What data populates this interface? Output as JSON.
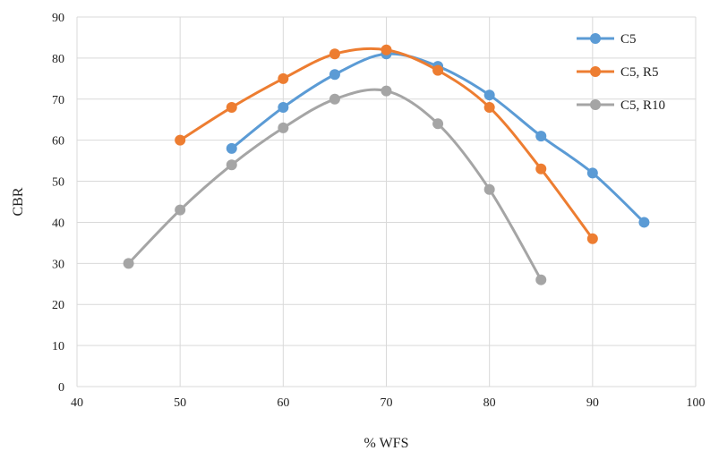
{
  "chart_data": {
    "type": "line",
    "title": "",
    "xlabel": "% WFS",
    "ylabel": "CBR",
    "xlim": [
      40,
      100
    ],
    "ylim": [
      0,
      90
    ],
    "x_ticks": [
      "40",
      "50",
      "60",
      "70",
      "80",
      "90",
      "100"
    ],
    "y_ticks": [
      "0",
      "10",
      "20",
      "30",
      "40",
      "50",
      "60",
      "70",
      "80",
      "90"
    ],
    "grid": "vertical-and-horizontal",
    "legend_position": "top-right",
    "smooth": true,
    "series": [
      {
        "name": "C5",
        "color": "#5b9bd5",
        "x": [
          55,
          60,
          65,
          70,
          75,
          80,
          85,
          90,
          95
        ],
        "y": [
          58,
          68,
          76,
          81,
          78,
          71,
          61,
          52,
          40
        ]
      },
      {
        "name": "C5, R5",
        "color": "#ed7d31",
        "x": [
          50,
          55,
          60,
          65,
          70,
          75,
          80,
          85,
          90
        ],
        "y": [
          60,
          68,
          75,
          81,
          82,
          77,
          68,
          53,
          36
        ]
      },
      {
        "name": "C5, R10",
        "color": "#a5a5a5",
        "x": [
          45,
          50,
          55,
          60,
          65,
          70,
          75,
          80,
          85
        ],
        "y": [
          30,
          43,
          54,
          63,
          70,
          72,
          64,
          48,
          26
        ]
      }
    ]
  }
}
